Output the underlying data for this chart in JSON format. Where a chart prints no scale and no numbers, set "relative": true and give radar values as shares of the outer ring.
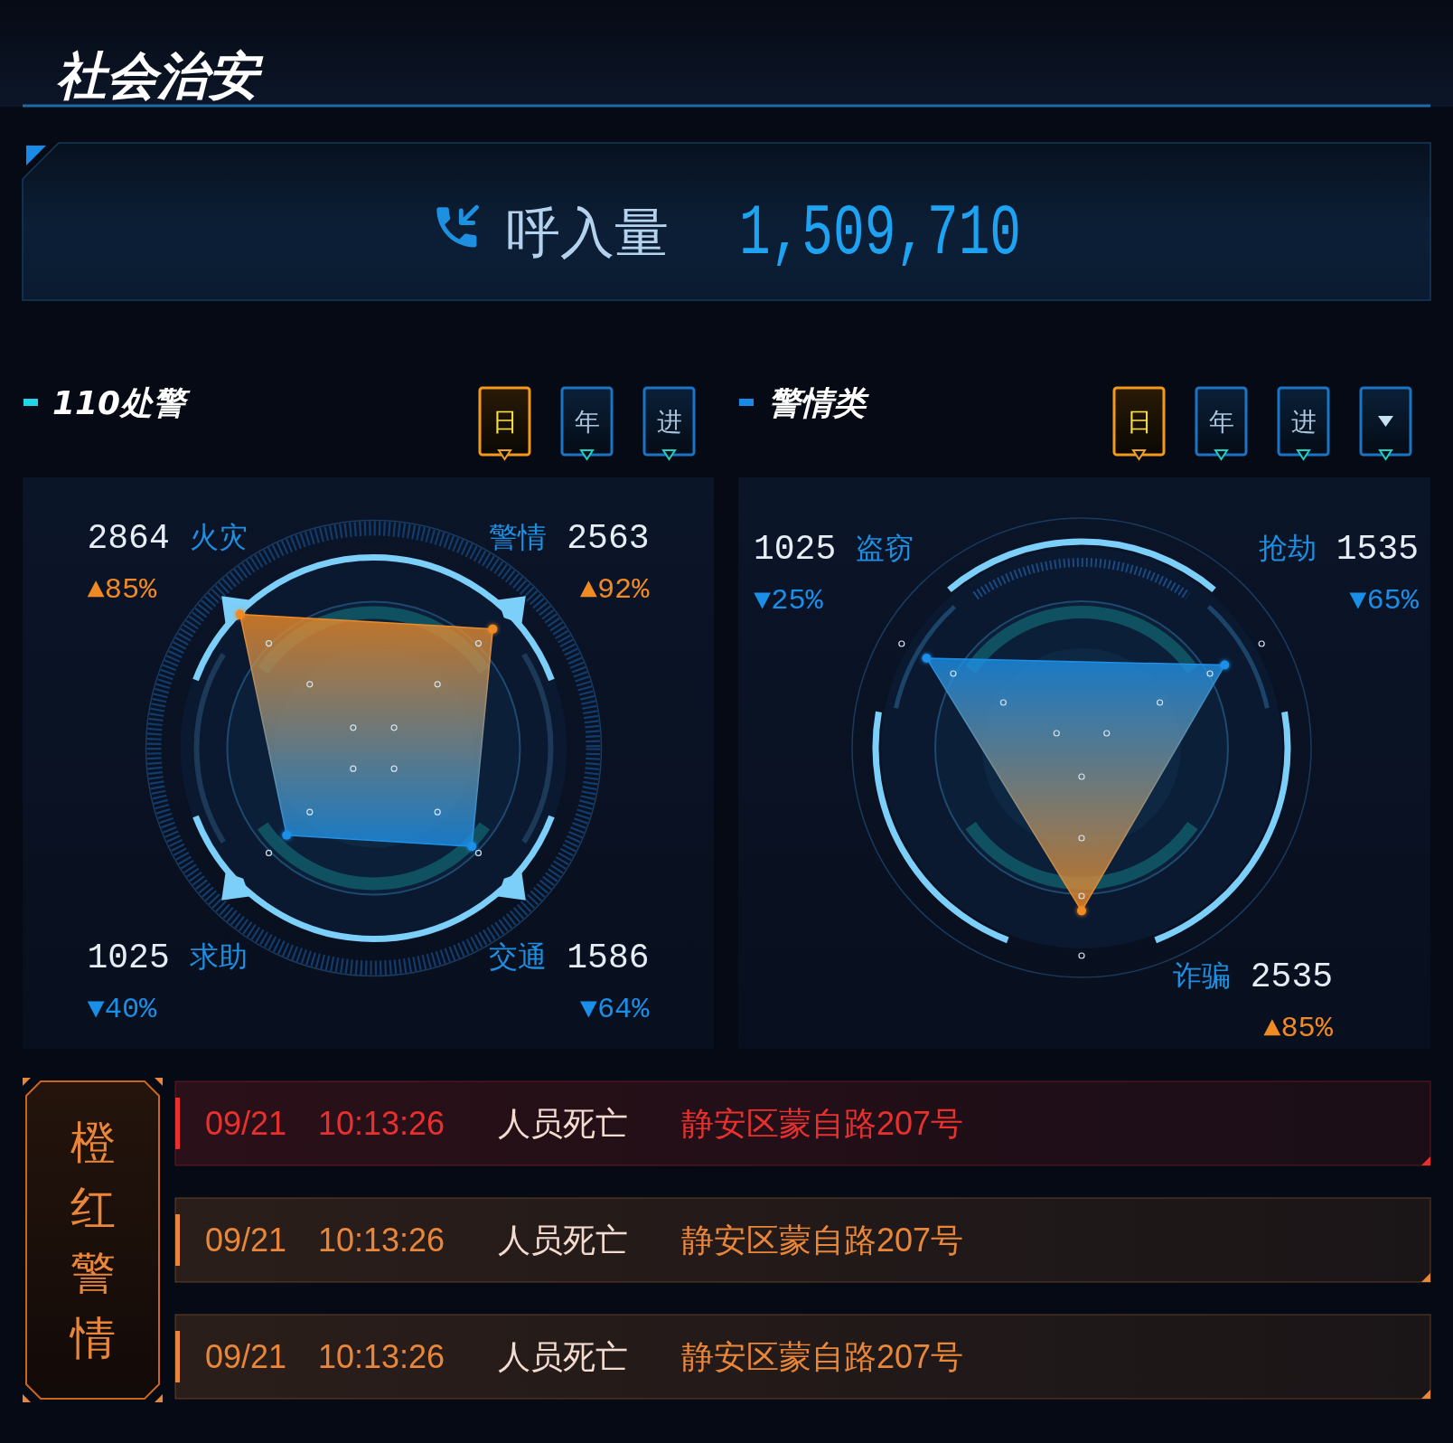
{
  "chart_data": [
    {
      "type": "other",
      "title": "社会治安",
      "annotations": [
        "呼入量",
        "1,509,710"
      ]
    },
    {
      "type": "radar",
      "title": "110处警",
      "categories": [
        "警情",
        "交通",
        "求助",
        "火灾"
      ],
      "relative": true,
      "grid": true,
      "marker": "circle",
      "series": [
        {
          "colors": [
            "#f08a24",
            "#1a8fe8",
            "#1a8fe8",
            "#f08a24"
          ],
          "values": [
            0.74,
            0.61,
            0.54,
            0.83
          ]
        }
      ],
      "annotations": [
        "2563",
        "▲92%",
        "1586",
        "▼64%",
        "1025",
        "▼40%",
        "2864",
        "▲85%",
        "日",
        "年",
        "进"
      ]
    },
    {
      "type": "radar",
      "title": "警情类",
      "categories": [
        "抢劫",
        "诈骗",
        "盗窃"
      ],
      "relative": true,
      "grid": true,
      "marker": "circle",
      "series": [
        {
          "colors": [
            "#1a8fe8",
            "#f08a24",
            "#1a8fe8"
          ],
          "values": [
            0.72,
            0.71,
            0.78
          ]
        }
      ],
      "annotations": [
        "1535",
        "▼65%",
        "2535",
        "▲85%",
        "1025",
        "▼25%",
        "日",
        "年",
        "进"
      ]
    },
    {
      "type": "other",
      "title": "橙红警情",
      "colors": [
        "#e8312f",
        "#e8863a",
        "#e8863a"
      ],
      "annotations": [
        "09/21",
        "10:13:26",
        "人员死亡",
        "静安区蒙自路207号",
        "09/21",
        "10:13:26",
        "人员死亡",
        "静安区蒙自路207号",
        "09/21",
        "10:13:26",
        "人员死亡",
        "静安区蒙自路207号"
      ]
    }
  ]
}
